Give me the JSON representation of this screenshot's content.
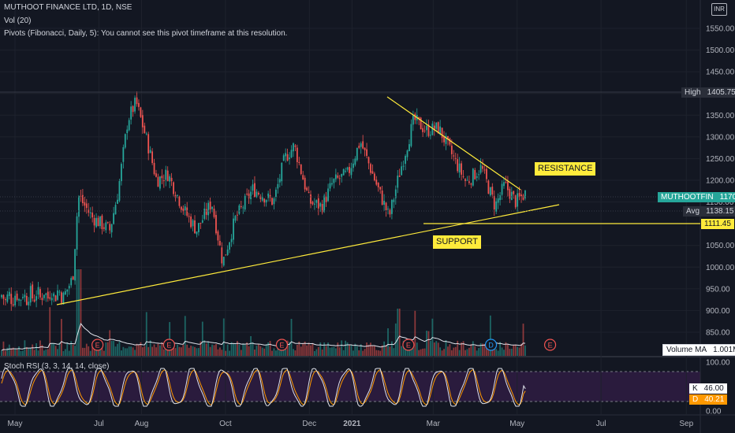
{
  "legend": {
    "title": "MUTHOOT FINANCE LTD, 1D, NSE",
    "vol": "Vol (20)",
    "pivots": "Pivots (Fibonacci, Daily, 5): You cannot see this pivot timeframe at this resolution.",
    "stoch": "Stoch RSI (3, 3, 14, 14, close)"
  },
  "currency_badge": "INR",
  "tags": {
    "high": {
      "label": "High",
      "value": "1405.75"
    },
    "symbol": {
      "label": "MUTHOOTFIN",
      "value": "1170.15"
    },
    "avg": {
      "label": "Avg",
      "value": "1138.15"
    },
    "support_level": {
      "value": "1111.45"
    },
    "volume_ma": {
      "label": "Volume MA",
      "value": "1.001M"
    },
    "k": {
      "label": "K",
      "value": "46.00"
    },
    "d": {
      "label": "D",
      "value": "40.21"
    }
  },
  "annotations": {
    "resistance": "RESISTANCE",
    "support": "SUPPORT"
  },
  "colors": {
    "up": "#26a69a",
    "down": "#ef5350",
    "trend": "#ffeb3b",
    "stoch_k": "#ffffff",
    "stoch_d": "#ff9800",
    "band": "#7e57c2"
  },
  "chart_data": [
    {
      "type": "candlestick",
      "title": "MUTHOOT FINANCE LTD, 1D, NSE",
      "x_ticks": [
        "May",
        "Jul",
        "Aug",
        "Oct",
        "Dec",
        "2021",
        "Mar",
        "May",
        "Jul",
        "Sep"
      ],
      "y_ticks": [
        850,
        900,
        950,
        1000,
        1050,
        1100,
        1150,
        1200,
        1250,
        1300,
        1350,
        1400,
        1450,
        1500,
        1550
      ],
      "ylim": [
        800,
        1610
      ],
      "series": [
        {
          "name": "MUTHOOTFIN",
          "close_approx": [
            {
              "date": "2020-06-05",
              "close": 930
            },
            {
              "date": "2020-06-12",
              "close": 975
            },
            {
              "date": "2020-06-16",
              "close": 1165
            },
            {
              "date": "2020-06-26",
              "close": 1115
            },
            {
              "date": "2020-07-09",
              "close": 1085
            },
            {
              "date": "2020-07-15",
              "close": 1175
            },
            {
              "date": "2020-07-22",
              "close": 1340
            },
            {
              "date": "2020-07-28",
              "close": 1380
            },
            {
              "date": "2020-08-05",
              "close": 1290
            },
            {
              "date": "2020-08-12",
              "close": 1200
            },
            {
              "date": "2020-08-20",
              "close": 1215
            },
            {
              "date": "2020-09-01",
              "close": 1130
            },
            {
              "date": "2020-09-10",
              "close": 1085
            },
            {
              "date": "2020-09-21",
              "close": 1150
            },
            {
              "date": "2020-09-29",
              "close": 1010
            },
            {
              "date": "2020-10-08",
              "close": 1110
            },
            {
              "date": "2020-10-21",
              "close": 1180
            },
            {
              "date": "2020-11-05",
              "close": 1150
            },
            {
              "date": "2020-11-13",
              "close": 1250
            },
            {
              "date": "2020-11-20",
              "close": 1280
            },
            {
              "date": "2020-12-01",
              "close": 1150
            },
            {
              "date": "2020-12-10",
              "close": 1140
            },
            {
              "date": "2020-12-18",
              "close": 1195
            },
            {
              "date": "2020-12-29",
              "close": 1215
            },
            {
              "date": "2021-01-07",
              "close": 1290
            },
            {
              "date": "2021-01-20",
              "close": 1180
            },
            {
              "date": "2021-01-28",
              "close": 1115
            },
            {
              "date": "2021-02-04",
              "close": 1210
            },
            {
              "date": "2021-02-15",
              "close": 1340
            },
            {
              "date": "2021-02-24",
              "close": 1315
            },
            {
              "date": "2021-03-05",
              "close": 1320
            },
            {
              "date": "2021-03-16",
              "close": 1250
            },
            {
              "date": "2021-03-25",
              "close": 1195
            },
            {
              "date": "2021-04-05",
              "close": 1230
            },
            {
              "date": "2021-04-15",
              "close": 1140
            },
            {
              "date": "2021-04-22",
              "close": 1190
            },
            {
              "date": "2021-04-30",
              "close": 1150
            },
            {
              "date": "2021-05-07",
              "close": 1170
            }
          ]
        }
      ]
    },
    {
      "type": "bar",
      "title": "Vol (20)",
      "series": [
        {
          "name": "Volume MA",
          "last": "1.001M"
        }
      ]
    },
    {
      "type": "line",
      "title": "Stoch RSI (3, 3, 14, 14, close)",
      "y_ticks": [
        0,
        50,
        100
      ],
      "ylim": [
        -5,
        105
      ],
      "series": [
        {
          "name": "K",
          "last": 46.0
        },
        {
          "name": "D",
          "last": 40.21
        }
      ]
    }
  ]
}
